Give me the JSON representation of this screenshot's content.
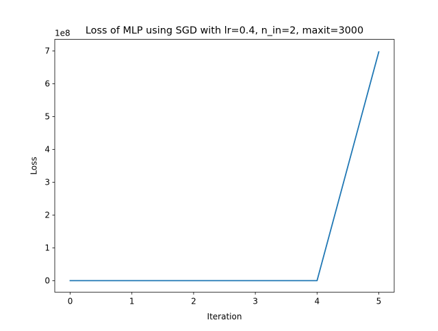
{
  "chart_data": {
    "type": "line",
    "title": "Loss of MLP using SGD with lr=0.4, n_in=2, maxit=3000",
    "xlabel": "Iteration",
    "ylabel": "Loss",
    "y_offset_label": "1e8",
    "xlim": [
      -0.25,
      5.25
    ],
    "ylim": [
      -0.35,
      7.35
    ],
    "x_ticks": [
      0,
      1,
      2,
      3,
      4,
      5
    ],
    "y_ticks": [
      0,
      1,
      2,
      3,
      4,
      5,
      6,
      7
    ],
    "grid": false,
    "legend": "none",
    "series": [
      {
        "color": "#1f77b4",
        "x": [
          0,
          1,
          2,
          3,
          4,
          5
        ],
        "y": [
          0,
          0,
          0,
          0,
          0,
          6.97
        ]
      }
    ]
  }
}
